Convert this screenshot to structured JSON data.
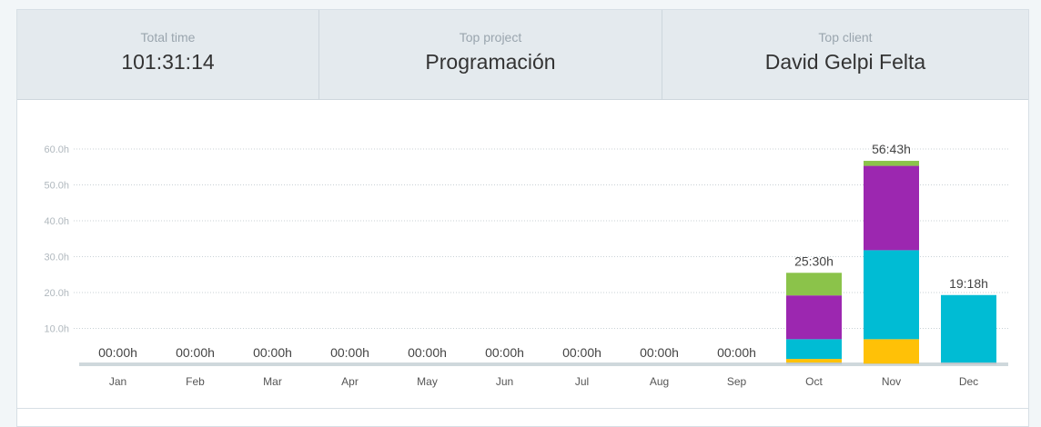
{
  "summary": {
    "total_time": {
      "label": "Total time",
      "value": "101:31:14"
    },
    "top_project": {
      "label": "Top project",
      "value": "Programación"
    },
    "top_client": {
      "label": "Top client",
      "value": "David Gelpi Felta"
    }
  },
  "colors": {
    "green": "#8bc34a",
    "purple": "#9c27b0",
    "cyan": "#00bcd4",
    "yellow": "#ffc107",
    "gray": "#bcc6cc",
    "baseline": "#cfd8dc",
    "grid": "#c9d1d6"
  },
  "chart_data": {
    "type": "bar",
    "stacked": true,
    "categories": [
      "Jan",
      "Feb",
      "Mar",
      "Apr",
      "May",
      "Jun",
      "Jul",
      "Aug",
      "Sep",
      "Oct",
      "Nov",
      "Dec"
    ],
    "ylim": [
      0,
      60
    ],
    "yticks": [
      "10.0h",
      "20.0h",
      "30.0h",
      "40.0h",
      "50.0h",
      "60.0h"
    ],
    "ytick_values": [
      10,
      20,
      30,
      40,
      50,
      60
    ],
    "totals": [
      "00:00h",
      "00:00h",
      "00:00h",
      "00:00h",
      "00:00h",
      "00:00h",
      "00:00h",
      "00:00h",
      "00:00h",
      "25:30h",
      "56:43h",
      "19:18h"
    ],
    "series": [
      {
        "color": "gray",
        "values": [
          0,
          0,
          0,
          0,
          0,
          0,
          0,
          0,
          0,
          0.5,
          0.2,
          0.5
        ]
      },
      {
        "color": "yellow",
        "values": [
          0,
          0,
          0,
          0,
          0,
          0,
          0,
          0,
          0,
          1.0,
          6.8,
          0
        ]
      },
      {
        "color": "cyan",
        "values": [
          0,
          0,
          0,
          0,
          0,
          0,
          0,
          0,
          0,
          5.5,
          24.8,
          18.8
        ]
      },
      {
        "color": "purple",
        "values": [
          0,
          0,
          0,
          0,
          0,
          0,
          0,
          0,
          0,
          12.2,
          23.5,
          0
        ]
      },
      {
        "color": "green",
        "values": [
          0,
          0,
          0,
          0,
          0,
          0,
          0,
          0,
          0,
          6.3,
          1.4,
          0
        ]
      }
    ],
    "grid": true
  }
}
